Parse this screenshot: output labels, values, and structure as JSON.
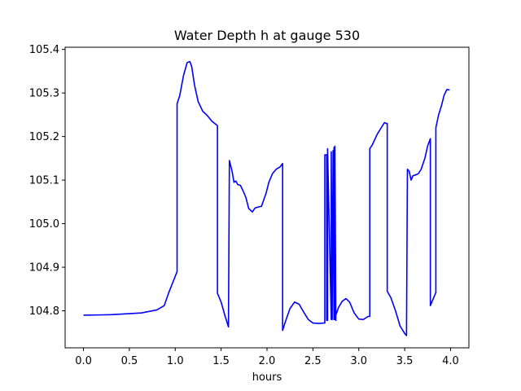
{
  "chart_data": {
    "type": "line",
    "title": "Water Depth h at gauge 530",
    "xlabel": "hours",
    "ylabel": "",
    "xlim": [
      -0.2,
      4.2
    ],
    "ylim": [
      104.715,
      105.405
    ],
    "xticks": [
      0.0,
      0.5,
      1.0,
      1.5,
      2.0,
      2.5,
      3.0,
      3.5,
      4.0
    ],
    "xtick_labels": [
      "0.0",
      "0.5",
      "1.0",
      "1.5",
      "2.0",
      "2.5",
      "3.0",
      "3.5",
      "4.0"
    ],
    "yticks": [
      104.8,
      104.9,
      105.0,
      105.1,
      105.2,
      105.3,
      105.4
    ],
    "ytick_labels": [
      "104.8",
      "104.9",
      "105.0",
      "105.1",
      "105.2",
      "105.3",
      "105.4"
    ],
    "grid": false,
    "legend": "none",
    "series": [
      {
        "color": "#0000ff",
        "x": [
          0.0,
          0.3,
          0.63,
          0.8,
          0.88,
          0.93,
          1.02,
          1.02,
          1.05,
          1.09,
          1.13,
          1.16,
          1.18,
          1.21,
          1.25,
          1.3,
          1.35,
          1.4,
          1.46,
          1.46,
          1.5,
          1.54,
          1.58,
          1.59,
          1.62,
          1.64,
          1.66,
          1.68,
          1.71,
          1.74,
          1.77,
          1.8,
          1.84,
          1.87,
          1.9,
          1.94,
          1.96,
          1.99,
          2.02,
          2.06,
          2.1,
          2.14,
          2.17,
          2.17,
          2.2,
          2.25,
          2.3,
          2.35,
          2.4,
          2.45,
          2.5,
          2.56,
          2.62,
          2.63,
          2.63,
          2.65,
          2.65,
          2.66,
          2.66,
          2.7,
          2.7,
          2.71,
          2.72,
          2.73,
          2.73,
          2.74,
          2.74,
          2.75,
          2.75,
          2.78,
          2.82,
          2.86,
          2.9,
          2.95,
          3.0,
          3.05,
          3.1,
          3.12,
          3.12,
          3.15,
          3.2,
          3.25,
          3.28,
          3.3,
          3.31,
          3.31,
          3.35,
          3.4,
          3.45,
          3.5,
          3.52,
          3.53,
          3.55,
          3.57,
          3.59,
          3.62,
          3.65,
          3.68,
          3.72,
          3.75,
          3.78,
          3.78,
          3.84,
          3.84,
          3.87,
          3.9,
          3.93,
          3.96,
          3.99
        ],
        "y": [
          104.79,
          104.791,
          104.795,
          104.802,
          104.812,
          104.842,
          104.89,
          105.275,
          105.295,
          105.34,
          105.37,
          105.372,
          105.36,
          105.318,
          105.28,
          105.258,
          105.248,
          105.235,
          105.225,
          104.84,
          104.82,
          104.79,
          104.763,
          105.145,
          105.12,
          105.095,
          105.098,
          105.09,
          105.088,
          105.075,
          105.06,
          105.035,
          105.027,
          105.036,
          105.038,
          105.04,
          105.052,
          105.07,
          105.095,
          105.115,
          105.125,
          105.13,
          105.138,
          104.755,
          104.775,
          104.805,
          104.82,
          104.815,
          104.797,
          104.78,
          104.772,
          104.771,
          104.772,
          104.772,
          105.158,
          105.158,
          104.778,
          104.778,
          105.172,
          104.78,
          105.165,
          104.78,
          105.168,
          104.78,
          105.175,
          104.78,
          105.178,
          104.778,
          104.79,
          104.808,
          104.822,
          104.828,
          104.82,
          104.795,
          104.781,
          104.78,
          104.787,
          104.787,
          105.172,
          105.182,
          105.205,
          105.222,
          105.232,
          105.23,
          105.23,
          104.845,
          104.83,
          104.8,
          104.765,
          104.748,
          104.743,
          105.125,
          105.12,
          105.1,
          105.11,
          105.112,
          105.115,
          105.125,
          105.15,
          105.178,
          105.195,
          104.812,
          104.842,
          105.22,
          105.25,
          105.27,
          105.295,
          105.308,
          105.307
        ]
      }
    ]
  }
}
